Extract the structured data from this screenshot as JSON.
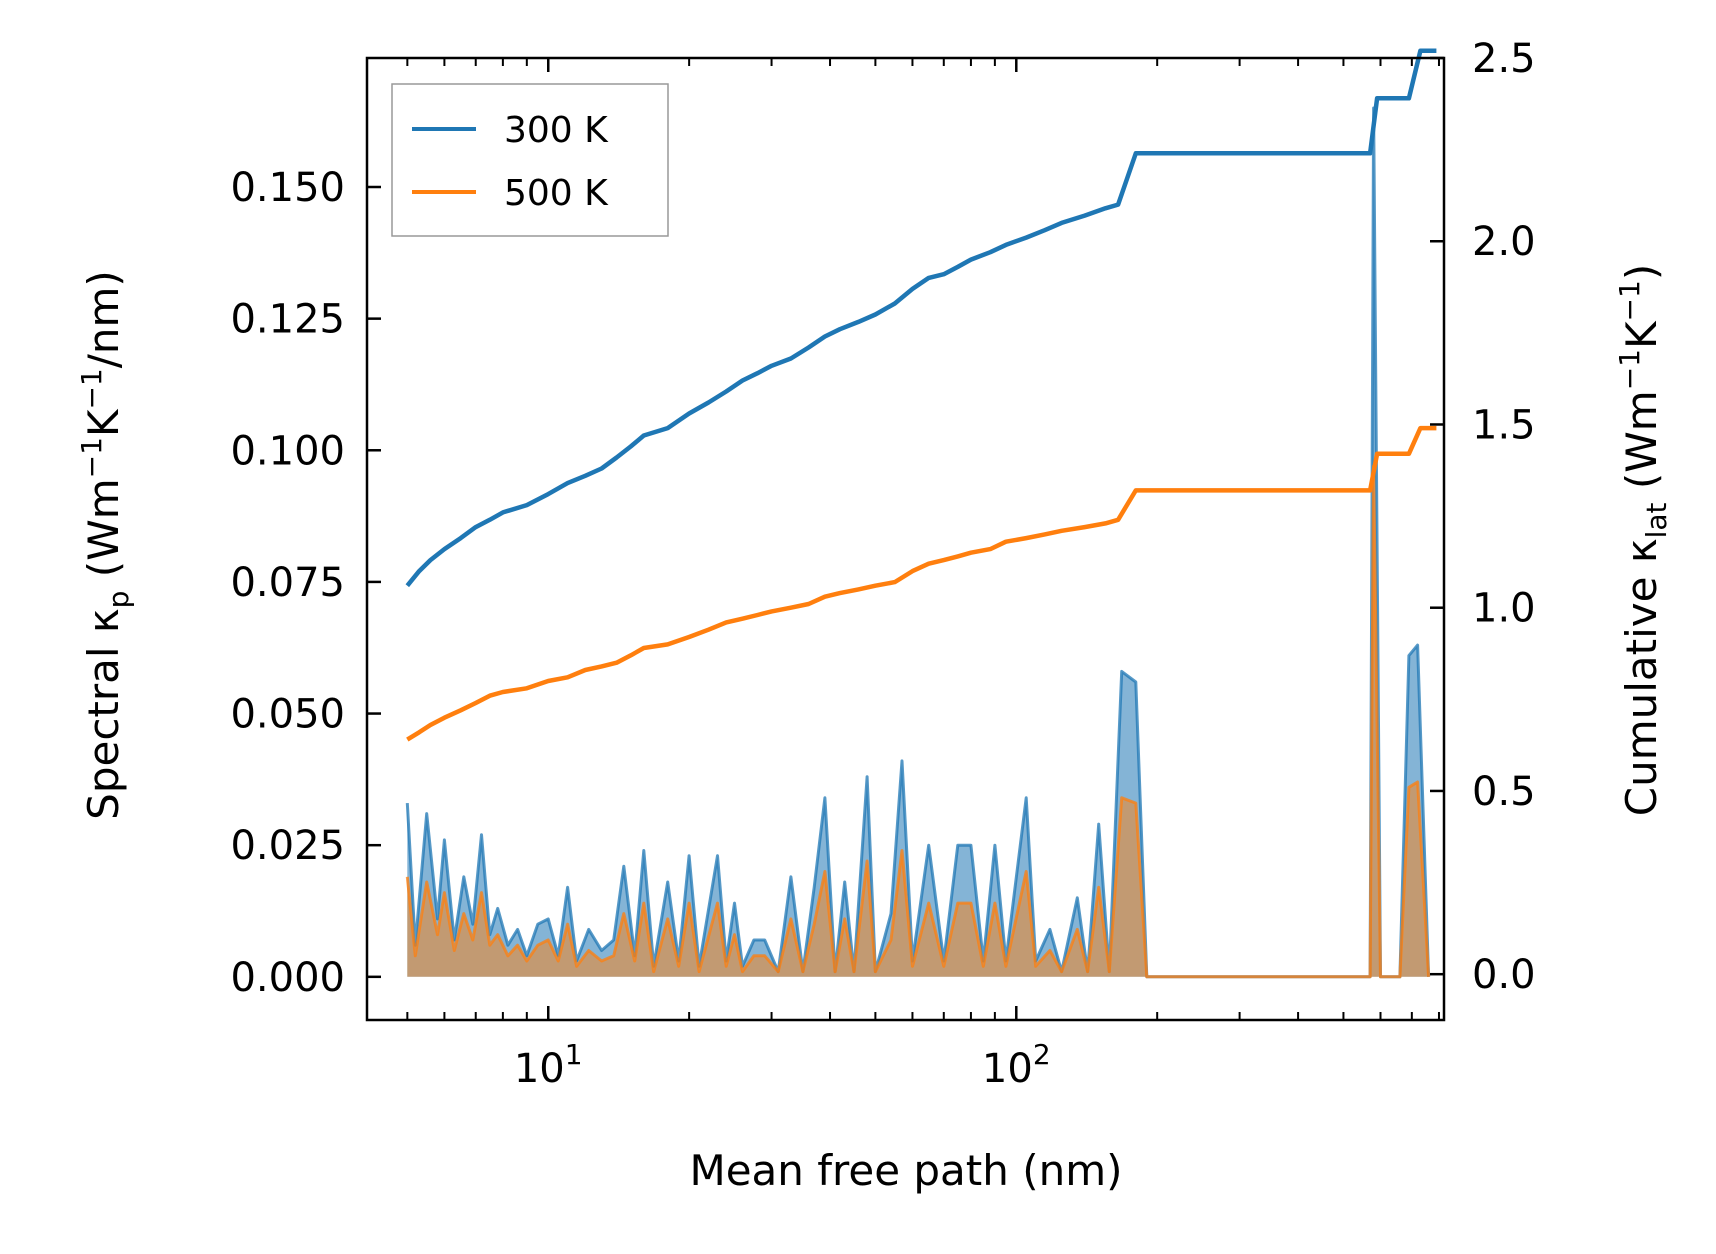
{
  "chart_data": {
    "type": "line",
    "title": "",
    "xlabel": "Mean free path (nm)",
    "ylabel_left": {
      "main": "Spectral κ",
      "sub": "p",
      "unit_open": " (Wm",
      "sup1": "−1",
      "mid": "K",
      "sup2": "−1",
      "unit_close": "/nm)"
    },
    "ylabel_right": {
      "main": "Cumulative κ",
      "sub": "lat",
      "unit_open": " (Wm",
      "sup1": "−1",
      "mid": "K",
      "sup2": "−1",
      "unit_close": ")"
    },
    "x_scale": "log",
    "xlim": [
      4.1,
      820
    ],
    "ylim_left": [
      -0.0082,
      0.1745
    ],
    "ylim_right": [
      -0.125,
      2.5
    ],
    "x_ticks": [
      {
        "base": "10",
        "exp": "1",
        "value": 10
      },
      {
        "base": "10",
        "exp": "2",
        "value": 100
      }
    ],
    "y_ticks_left": [
      {
        "label": "0.000",
        "value": 0.0
      },
      {
        "label": "0.025",
        "value": 0.025
      },
      {
        "label": "0.050",
        "value": 0.05
      },
      {
        "label": "0.075",
        "value": 0.075
      },
      {
        "label": "0.100",
        "value": 0.1
      },
      {
        "label": "0.125",
        "value": 0.125
      },
      {
        "label": "0.150",
        "value": 0.15
      }
    ],
    "y_ticks_right": [
      {
        "label": "0.0",
        "value": 0.0
      },
      {
        "label": "0.5",
        "value": 0.5
      },
      {
        "label": "1.0",
        "value": 1.0
      },
      {
        "label": "1.5",
        "value": 1.5
      },
      {
        "label": "2.0",
        "value": 2.0
      },
      {
        "label": "2.5",
        "value": 2.5
      }
    ],
    "legend_position": "top-left",
    "series": [
      {
        "name": "300 K",
        "color": "#1f77b4",
        "cumulative": [
          [
            5.0,
            1.06
          ],
          [
            5.3,
            1.1
          ],
          [
            5.6,
            1.13
          ],
          [
            6.0,
            1.16
          ],
          [
            6.5,
            1.19
          ],
          [
            7.0,
            1.22
          ],
          [
            7.5,
            1.24
          ],
          [
            8.0,
            1.26
          ],
          [
            9.0,
            1.28
          ],
          [
            10.0,
            1.31
          ],
          [
            11.0,
            1.34
          ],
          [
            12.0,
            1.36
          ],
          [
            13.0,
            1.38
          ],
          [
            14.0,
            1.41
          ],
          [
            15.0,
            1.44
          ],
          [
            16.0,
            1.47
          ],
          [
            18.0,
            1.49
          ],
          [
            20.0,
            1.53
          ],
          [
            22.0,
            1.56
          ],
          [
            24.0,
            1.59
          ],
          [
            26.0,
            1.62
          ],
          [
            28.0,
            1.64
          ],
          [
            30.0,
            1.66
          ],
          [
            33.0,
            1.68
          ],
          [
            36.0,
            1.71
          ],
          [
            39.0,
            1.74
          ],
          [
            42.0,
            1.76
          ],
          [
            46.0,
            1.78
          ],
          [
            50.0,
            1.8
          ],
          [
            55.0,
            1.83
          ],
          [
            60.0,
            1.87
          ],
          [
            65.0,
            1.9
          ],
          [
            70.0,
            1.91
          ],
          [
            75.0,
            1.93
          ],
          [
            80.0,
            1.95
          ],
          [
            88.0,
            1.97
          ],
          [
            95.0,
            1.99
          ],
          [
            105.0,
            2.01
          ],
          [
            115.0,
            2.03
          ],
          [
            125.0,
            2.05
          ],
          [
            140.0,
            2.07
          ],
          [
            155.0,
            2.09
          ],
          [
            165.0,
            2.1
          ],
          [
            180.0,
            2.24
          ],
          [
            200.0,
            2.24
          ],
          [
            300.0,
            2.24
          ],
          [
            400.0,
            2.24
          ],
          [
            570.0,
            2.24
          ],
          [
            590.0,
            2.39
          ],
          [
            690.0,
            2.39
          ],
          [
            730.0,
            2.52
          ],
          [
            790.0,
            2.52
          ]
        ],
        "spectral": [
          [
            5.0,
            0.033
          ],
          [
            5.2,
            0.006
          ],
          [
            5.5,
            0.031
          ],
          [
            5.8,
            0.011
          ],
          [
            6.0,
            0.026
          ],
          [
            6.3,
            0.007
          ],
          [
            6.6,
            0.019
          ],
          [
            6.9,
            0.01
          ],
          [
            7.2,
            0.027
          ],
          [
            7.5,
            0.008
          ],
          [
            7.8,
            0.013
          ],
          [
            8.2,
            0.006
          ],
          [
            8.6,
            0.009
          ],
          [
            9.0,
            0.004
          ],
          [
            9.5,
            0.01
          ],
          [
            10.0,
            0.011
          ],
          [
            10.5,
            0.004
          ],
          [
            11.0,
            0.017
          ],
          [
            11.5,
            0.003
          ],
          [
            12.2,
            0.009
          ],
          [
            13.0,
            0.005
          ],
          [
            13.8,
            0.007
          ],
          [
            14.5,
            0.021
          ],
          [
            15.3,
            0.004
          ],
          [
            16.0,
            0.024
          ],
          [
            16.8,
            0.002
          ],
          [
            18.0,
            0.018
          ],
          [
            19.0,
            0.003
          ],
          [
            20.0,
            0.023
          ],
          [
            21.0,
            0.002
          ],
          [
            23.0,
            0.023
          ],
          [
            24.0,
            0.003
          ],
          [
            25.0,
            0.014
          ],
          [
            26.0,
            0.002
          ],
          [
            27.5,
            0.007
          ],
          [
            29.0,
            0.007
          ],
          [
            31.0,
            0.001
          ],
          [
            33.0,
            0.019
          ],
          [
            35.0,
            0.001
          ],
          [
            37.0,
            0.017
          ],
          [
            39.0,
            0.034
          ],
          [
            41.0,
            0.001
          ],
          [
            43.0,
            0.018
          ],
          [
            45.0,
            0.001
          ],
          [
            48.0,
            0.038
          ],
          [
            50.0,
            0.001
          ],
          [
            54.0,
            0.012
          ],
          [
            57.0,
            0.041
          ],
          [
            60.0,
            0.003
          ],
          [
            65.0,
            0.025
          ],
          [
            70.0,
            0.003
          ],
          [
            75.0,
            0.025
          ],
          [
            80.0,
            0.025
          ],
          [
            85.0,
            0.003
          ],
          [
            90.0,
            0.025
          ],
          [
            95.0,
            0.003
          ],
          [
            105.0,
            0.034
          ],
          [
            110.0,
            0.003
          ],
          [
            118.0,
            0.009
          ],
          [
            125.0,
            0.001
          ],
          [
            135.0,
            0.015
          ],
          [
            142.0,
            0.001
          ],
          [
            150.0,
            0.029
          ],
          [
            158.0,
            0.001
          ],
          [
            168.0,
            0.058
          ],
          [
            180.0,
            0.056
          ],
          [
            190.0,
            0.0
          ],
          [
            300.0,
            0.0
          ],
          [
            450.0,
            0.0
          ],
          [
            570.0,
            0.0
          ],
          [
            580.0,
            0.165
          ],
          [
            600.0,
            0.0
          ],
          [
            660.0,
            0.0
          ],
          [
            690.0,
            0.061
          ],
          [
            720.0,
            0.063
          ],
          [
            760.0,
            0.0
          ]
        ]
      },
      {
        "name": "500 K",
        "color": "#ff7f0e",
        "cumulative": [
          [
            5.0,
            0.64
          ],
          [
            5.3,
            0.66
          ],
          [
            5.6,
            0.68
          ],
          [
            6.0,
            0.7
          ],
          [
            6.5,
            0.72
          ],
          [
            7.0,
            0.74
          ],
          [
            7.5,
            0.76
          ],
          [
            8.0,
            0.77
          ],
          [
            9.0,
            0.78
          ],
          [
            10.0,
            0.8
          ],
          [
            11.0,
            0.81
          ],
          [
            12.0,
            0.83
          ],
          [
            13.0,
            0.84
          ],
          [
            14.0,
            0.85
          ],
          [
            15.0,
            0.87
          ],
          [
            16.0,
            0.89
          ],
          [
            18.0,
            0.9
          ],
          [
            20.0,
            0.92
          ],
          [
            22.0,
            0.94
          ],
          [
            24.0,
            0.96
          ],
          [
            26.0,
            0.97
          ],
          [
            28.0,
            0.98
          ],
          [
            30.0,
            0.99
          ],
          [
            33.0,
            1.0
          ],
          [
            36.0,
            1.01
          ],
          [
            39.0,
            1.03
          ],
          [
            42.0,
            1.04
          ],
          [
            46.0,
            1.05
          ],
          [
            50.0,
            1.06
          ],
          [
            55.0,
            1.07
          ],
          [
            60.0,
            1.1
          ],
          [
            65.0,
            1.12
          ],
          [
            70.0,
            1.13
          ],
          [
            75.0,
            1.14
          ],
          [
            80.0,
            1.15
          ],
          [
            88.0,
            1.16
          ],
          [
            95.0,
            1.18
          ],
          [
            105.0,
            1.19
          ],
          [
            115.0,
            1.2
          ],
          [
            125.0,
            1.21
          ],
          [
            140.0,
            1.22
          ],
          [
            155.0,
            1.23
          ],
          [
            165.0,
            1.24
          ],
          [
            180.0,
            1.32
          ],
          [
            200.0,
            1.32
          ],
          [
            300.0,
            1.32
          ],
          [
            400.0,
            1.32
          ],
          [
            570.0,
            1.32
          ],
          [
            590.0,
            1.42
          ],
          [
            690.0,
            1.42
          ],
          [
            730.0,
            1.49
          ],
          [
            790.0,
            1.49
          ]
        ],
        "spectral": [
          [
            5.0,
            0.019
          ],
          [
            5.2,
            0.004
          ],
          [
            5.5,
            0.018
          ],
          [
            5.8,
            0.008
          ],
          [
            6.0,
            0.016
          ],
          [
            6.3,
            0.005
          ],
          [
            6.6,
            0.012
          ],
          [
            6.9,
            0.007
          ],
          [
            7.2,
            0.016
          ],
          [
            7.5,
            0.006
          ],
          [
            7.8,
            0.008
          ],
          [
            8.2,
            0.004
          ],
          [
            8.6,
            0.006
          ],
          [
            9.0,
            0.003
          ],
          [
            9.5,
            0.006
          ],
          [
            10.0,
            0.007
          ],
          [
            10.5,
            0.003
          ],
          [
            11.0,
            0.01
          ],
          [
            11.5,
            0.002
          ],
          [
            12.2,
            0.005
          ],
          [
            13.0,
            0.003
          ],
          [
            13.8,
            0.004
          ],
          [
            14.5,
            0.012
          ],
          [
            15.3,
            0.003
          ],
          [
            16.0,
            0.014
          ],
          [
            16.8,
            0.001
          ],
          [
            18.0,
            0.011
          ],
          [
            19.0,
            0.002
          ],
          [
            20.0,
            0.014
          ],
          [
            21.0,
            0.001
          ],
          [
            23.0,
            0.014
          ],
          [
            24.0,
            0.002
          ],
          [
            25.0,
            0.008
          ],
          [
            26.0,
            0.001
          ],
          [
            27.5,
            0.004
          ],
          [
            29.0,
            0.004
          ],
          [
            31.0,
            0.001
          ],
          [
            33.0,
            0.011
          ],
          [
            35.0,
            0.001
          ],
          [
            37.0,
            0.01
          ],
          [
            39.0,
            0.02
          ],
          [
            41.0,
            0.001
          ],
          [
            43.0,
            0.011
          ],
          [
            45.0,
            0.001
          ],
          [
            48.0,
            0.022
          ],
          [
            50.0,
            0.001
          ],
          [
            54.0,
            0.007
          ],
          [
            57.0,
            0.024
          ],
          [
            60.0,
            0.002
          ],
          [
            65.0,
            0.014
          ],
          [
            70.0,
            0.002
          ],
          [
            75.0,
            0.014
          ],
          [
            80.0,
            0.014
          ],
          [
            85.0,
            0.002
          ],
          [
            90.0,
            0.014
          ],
          [
            95.0,
            0.002
          ],
          [
            105.0,
            0.02
          ],
          [
            110.0,
            0.002
          ],
          [
            118.0,
            0.005
          ],
          [
            125.0,
            0.001
          ],
          [
            135.0,
            0.009
          ],
          [
            142.0,
            0.001
          ],
          [
            150.0,
            0.017
          ],
          [
            158.0,
            0.001
          ],
          [
            168.0,
            0.034
          ],
          [
            180.0,
            0.033
          ],
          [
            190.0,
            0.0
          ],
          [
            300.0,
            0.0
          ],
          [
            450.0,
            0.0
          ],
          [
            570.0,
            0.0
          ],
          [
            580.0,
            0.097
          ],
          [
            600.0,
            0.0
          ],
          [
            660.0,
            0.0
          ],
          [
            690.0,
            0.036
          ],
          [
            720.0,
            0.037
          ],
          [
            760.0,
            0.0
          ]
        ]
      }
    ]
  }
}
